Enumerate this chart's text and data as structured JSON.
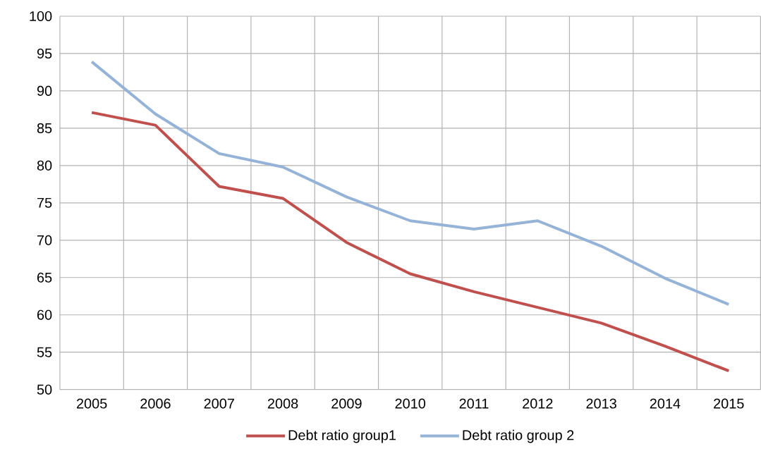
{
  "chart_data": {
    "type": "line",
    "categories": [
      "2005",
      "2006",
      "2007",
      "2008",
      "2009",
      "2010",
      "2011",
      "2012",
      "2013",
      "2014",
      "2015"
    ],
    "series": [
      {
        "name": "Debt ratio group1",
        "color": "#c0504d",
        "values": [
          87.1,
          85.4,
          77.2,
          75.6,
          69.7,
          65.5,
          63.1,
          61.0,
          58.9,
          55.8,
          52.5
        ]
      },
      {
        "name": "Debt ratio group 2",
        "color": "#95b3d7",
        "values": [
          93.9,
          86.9,
          81.6,
          79.8,
          75.8,
          72.6,
          71.5,
          72.6,
          69.2,
          64.9,
          61.4
        ]
      }
    ],
    "ylim": [
      50,
      100
    ],
    "yticks": [
      50,
      55,
      60,
      65,
      70,
      75,
      80,
      85,
      90,
      95,
      100
    ],
    "grid": true,
    "legend": "bottom",
    "marker": "none",
    "line_style": "solid"
  }
}
